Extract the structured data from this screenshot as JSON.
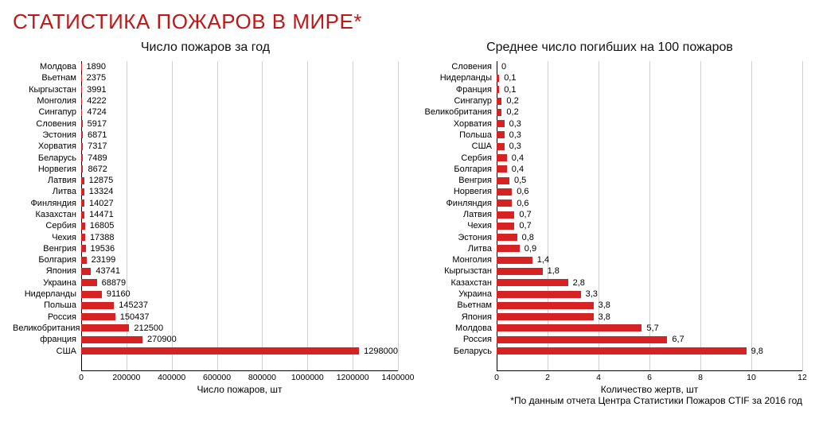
{
  "title": "СТАТИСТИКА ПОЖАРОВ В МИРЕ*",
  "title_color": "#c01818",
  "bar_color": "#d62222",
  "grid_color": "#d0d0d0",
  "axis_color": "#000000",
  "left_chart": {
    "title": "Число пожаров за год",
    "x_title": "Число пожаров, шт",
    "x_max": 1400000,
    "x_ticks": [
      0,
      200000,
      400000,
      600000,
      800000,
      1000000,
      1200000,
      1400000
    ],
    "label_width": 86,
    "data": [
      {
        "label": "Молдова",
        "value": 1890
      },
      {
        "label": "Вьетнам",
        "value": 2375
      },
      {
        "label": "Кыргызстан",
        "value": 3991
      },
      {
        "label": "Монголия",
        "value": 4222
      },
      {
        "label": "Сингапур",
        "value": 4724
      },
      {
        "label": "Словения",
        "value": 5917
      },
      {
        "label": "Эстония",
        "value": 6871
      },
      {
        "label": "Хорватия",
        "value": 7317
      },
      {
        "label": "Беларусь",
        "value": 7489
      },
      {
        "label": "Норвегия",
        "value": 8672
      },
      {
        "label": "Латвия",
        "value": 12875
      },
      {
        "label": "Литва",
        "value": 13324
      },
      {
        "label": "Финляндия",
        "value": 14027
      },
      {
        "label": "Казахстан",
        "value": 14471
      },
      {
        "label": "Сербия",
        "value": 16805
      },
      {
        "label": "Чехия",
        "value": 17388
      },
      {
        "label": "Венгрия",
        "value": 19536
      },
      {
        "label": "Болгария",
        "value": 23199
      },
      {
        "label": "Япония",
        "value": 43741
      },
      {
        "label": "Украина",
        "value": 68879
      },
      {
        "label": "Нидерланды",
        "value": 91160
      },
      {
        "label": "Польша",
        "value": 145237
      },
      {
        "label": "Россия",
        "value": 150437
      },
      {
        "label": "Великобритания",
        "value": 212500
      },
      {
        "label": "франция",
        "value": 270900
      },
      {
        "label": "США",
        "value": 1298000
      }
    ]
  },
  "right_chart": {
    "title": "Среднее число погибших на 100 пожаров",
    "x_title": "Количество жертв, шт",
    "x_max": 12,
    "x_ticks": [
      0,
      2,
      4,
      6,
      8,
      10,
      12
    ],
    "label_width": 100,
    "data": [
      {
        "label": "Словения",
        "value": 0
      },
      {
        "label": "Нидерланды",
        "value": 0.1
      },
      {
        "label": "Франция",
        "value": 0.1
      },
      {
        "label": "Сингапур",
        "value": 0.2
      },
      {
        "label": "Великобритания",
        "value": 0.2
      },
      {
        "label": "Хорватия",
        "value": 0.3
      },
      {
        "label": "Польша",
        "value": 0.3
      },
      {
        "label": "США",
        "value": 0.3
      },
      {
        "label": "Сербия",
        "value": 0.4
      },
      {
        "label": "Болгария",
        "value": 0.4
      },
      {
        "label": "Венгрия",
        "value": 0.5
      },
      {
        "label": "Норвегия",
        "value": 0.6
      },
      {
        "label": "Финляндия",
        "value": 0.6
      },
      {
        "label": "Латвия",
        "value": 0.7
      },
      {
        "label": "Чехия",
        "value": 0.7
      },
      {
        "label": "Эстония",
        "value": 0.8
      },
      {
        "label": "Литва",
        "value": 0.9
      },
      {
        "label": "Монголия",
        "value": 1.4
      },
      {
        "label": "Кыргызстан",
        "value": 1.8
      },
      {
        "label": "Казахстан",
        "value": 2.8
      },
      {
        "label": "Украина",
        "value": 3.3
      },
      {
        "label": "Вьетнам",
        "value": 3.8
      },
      {
        "label": "Япония",
        "value": 3.8
      },
      {
        "label": "Молдова",
        "value": 5.7
      },
      {
        "label": "Россия",
        "value": 6.7
      },
      {
        "label": "Беларусь",
        "value": 9.8
      }
    ]
  },
  "footnote": "*По данным отчета Центра Статистики Пожаров CTIF за 2016 год"
}
